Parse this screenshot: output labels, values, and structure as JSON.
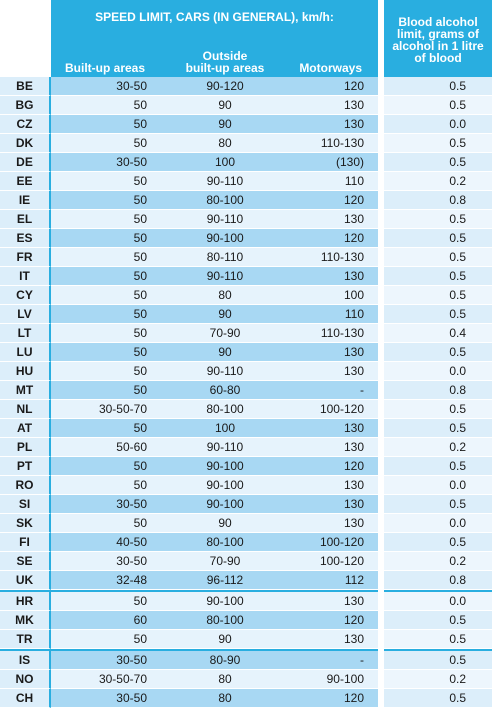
{
  "header": {
    "speed_title": "SPEED LIMIT, CARS (IN GENERAL), km/h:",
    "col_builtup": "Built-up areas",
    "col_outside_line1": "Outside",
    "col_outside_line2": "built-up areas",
    "col_motorways": "Motorways",
    "bac_line1": "Blood alcohol",
    "bac_line2": "limit, grams of",
    "bac_line3": "alcohol in 1 litre",
    "bac_line4": "of blood"
  },
  "rows": [
    {
      "code": "BE",
      "builtup": "30-50",
      "outside": "90-120",
      "motorways": "120",
      "bac": "0.5"
    },
    {
      "code": "BG",
      "builtup": "50",
      "outside": "90",
      "motorways": "130",
      "bac": "0.5"
    },
    {
      "code": "CZ",
      "builtup": "50",
      "outside": "90",
      "motorways": "130",
      "bac": "0.0"
    },
    {
      "code": "DK",
      "builtup": "50",
      "outside": "80",
      "motorways": "110-130",
      "bac": "0.5"
    },
    {
      "code": "DE",
      "builtup": "30-50",
      "outside": "100",
      "motorways": "(130)",
      "bac": "0.5"
    },
    {
      "code": "EE",
      "builtup": "50",
      "outside": "90-110",
      "motorways": "110",
      "bac": "0.2"
    },
    {
      "code": "IE",
      "builtup": "50",
      "outside": "80-100",
      "motorways": "120",
      "bac": "0.8"
    },
    {
      "code": "EL",
      "builtup": "50",
      "outside": "90-110",
      "motorways": "130",
      "bac": "0.5"
    },
    {
      "code": "ES",
      "builtup": "50",
      "outside": "90-100",
      "motorways": "120",
      "bac": "0.5"
    },
    {
      "code": "FR",
      "builtup": "50",
      "outside": "80-110",
      "motorways": "110-130",
      "bac": "0.5"
    },
    {
      "code": "IT",
      "builtup": "50",
      "outside": "90-110",
      "motorways": "130",
      "bac": "0.5"
    },
    {
      "code": "CY",
      "builtup": "50",
      "outside": "80",
      "motorways": "100",
      "bac": "0.5"
    },
    {
      "code": "LV",
      "builtup": "50",
      "outside": "90",
      "motorways": "110",
      "bac": "0.5"
    },
    {
      "code": "LT",
      "builtup": "50",
      "outside": "70-90",
      "motorways": "110-130",
      "bac": "0.4"
    },
    {
      "code": "LU",
      "builtup": "50",
      "outside": "90",
      "motorways": "130",
      "bac": "0.5"
    },
    {
      "code": "HU",
      "builtup": "50",
      "outside": "90-110",
      "motorways": "130",
      "bac": "0.0"
    },
    {
      "code": "MT",
      "builtup": "50",
      "outside": "60-80",
      "motorways": "-",
      "bac": "0.8"
    },
    {
      "code": "NL",
      "builtup": "30-50-70",
      "outside": "80-100",
      "motorways": "100-120",
      "bac": "0.5"
    },
    {
      "code": "AT",
      "builtup": "50",
      "outside": "100",
      "motorways": "130",
      "bac": "0.5"
    },
    {
      "code": "PL",
      "builtup": "50-60",
      "outside": "90-110",
      "motorways": "130",
      "bac": "0.2"
    },
    {
      "code": "PT",
      "builtup": "50",
      "outside": "90-100",
      "motorways": "120",
      "bac": "0.5"
    },
    {
      "code": "RO",
      "builtup": "50",
      "outside": "90-100",
      "motorways": "130",
      "bac": "0.0"
    },
    {
      "code": "SI",
      "builtup": "30-50",
      "outside": "90-100",
      "motorways": "130",
      "bac": "0.5"
    },
    {
      "code": "SK",
      "builtup": "50",
      "outside": "90",
      "motorways": "130",
      "bac": "0.0"
    },
    {
      "code": "FI",
      "builtup": "40-50",
      "outside": "80-100",
      "motorways": "100-120",
      "bac": "0.5"
    },
    {
      "code": "SE",
      "builtup": "30-50",
      "outside": "70-90",
      "motorways": "100-120",
      "bac": "0.2"
    },
    {
      "code": "UK",
      "builtup": "32-48",
      "outside": "96-112",
      "motorways": "112",
      "bac": "0.8"
    },
    {
      "code": "HR",
      "builtup": "50",
      "outside": "90-100",
      "motorways": "130",
      "bac": "0.0"
    },
    {
      "code": "MK",
      "builtup": "60",
      "outside": "80-100",
      "motorways": "120",
      "bac": "0.5"
    },
    {
      "code": "TR",
      "builtup": "50",
      "outside": "90",
      "motorways": "130",
      "bac": "0.5"
    },
    {
      "code": "IS",
      "builtup": "30-50",
      "outside": "80-90",
      "motorways": "-",
      "bac": "0.5"
    },
    {
      "code": "NO",
      "builtup": "30-50-70",
      "outside": "80",
      "motorways": "90-100",
      "bac": "0.2"
    },
    {
      "code": "CH",
      "builtup": "30-50",
      "outside": "80",
      "motorways": "120",
      "bac": "0.5"
    }
  ],
  "colors": {
    "header_blue": "#29aee0",
    "stripe_dark": "#a8d8f3",
    "stripe_light": "#e6f3fc"
  }
}
